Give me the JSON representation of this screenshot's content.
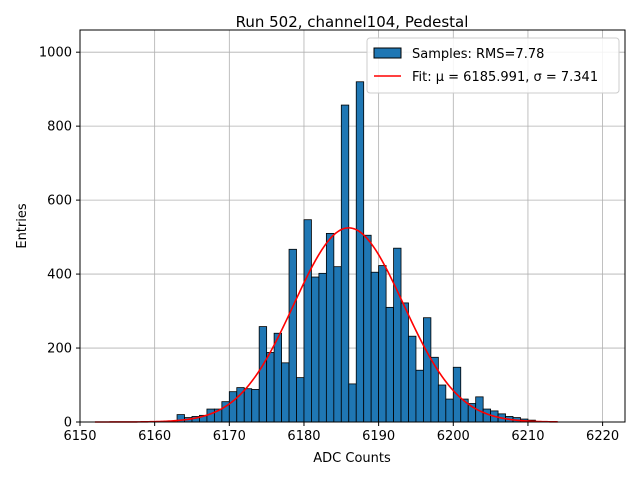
{
  "chart_data": {
    "type": "bar",
    "title": "Run 502, channel104, Pedestal",
    "xlabel": "ADC Counts",
    "ylabel": "Entries",
    "xlim": [
      6150,
      6223
    ],
    "ylim": [
      0,
      1060
    ],
    "xticks": [
      6150,
      6160,
      6170,
      6180,
      6190,
      6200,
      6210,
      6220
    ],
    "yticks": [
      0,
      200,
      400,
      600,
      800,
      1000
    ],
    "grid": true,
    "legend_position": "top-right",
    "bar_color": "#1f77b4",
    "fit_color": "#ff0000",
    "legend": [
      {
        "label": "Samples: RMS=7.78",
        "kind": "patch"
      },
      {
        "label": "Fit: μ = 6185.991, σ = 7.341",
        "kind": "line"
      }
    ],
    "histogram": {
      "bin_edges": [
        6163,
        6164,
        6165,
        6166,
        6167,
        6168,
        6169,
        6170,
        6171,
        6172,
        6173,
        6174,
        6175,
        6176,
        6177,
        6178,
        6179,
        6180,
        6181,
        6182,
        6183,
        6184,
        6185,
        6186,
        6187,
        6188,
        6189,
        6190,
        6191,
        6192,
        6193,
        6194,
        6195,
        6196,
        6197,
        6198,
        6199,
        6200,
        6201,
        6202,
        6203,
        6204,
        6205,
        6206,
        6207,
        6208,
        6209,
        6210,
        6211
      ],
      "counts": [
        20,
        12,
        15,
        18,
        35,
        35,
        55,
        82,
        93,
        90,
        88,
        258,
        188,
        240,
        160,
        467,
        120,
        547,
        392,
        402,
        510,
        420,
        857,
        103,
        920,
        505,
        405,
        423,
        310,
        470,
        322,
        232,
        140,
        282,
        175,
        100,
        62,
        148,
        62,
        50,
        68,
        35,
        30,
        22,
        15,
        12,
        8,
        5
      ]
    },
    "fit": {
      "type": "gaussian",
      "mu": 6185.991,
      "sigma": 7.341,
      "amplitude": 525,
      "x_range": [
        6152,
        6214
      ]
    }
  }
}
